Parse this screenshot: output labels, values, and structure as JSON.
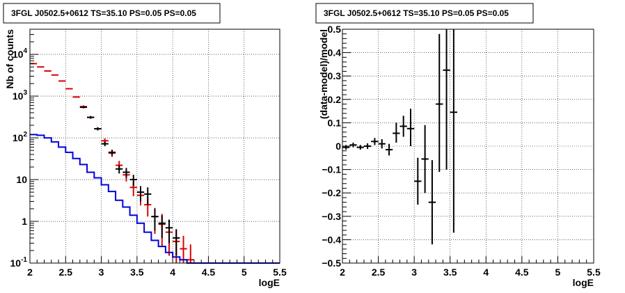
{
  "colors": {
    "data": "#000000",
    "model": "#dd0000",
    "source": "#0000dd"
  },
  "left_title": "3FGL J0502.5+0612 TS=35.10 PS=0.05 PS=0.05",
  "right_title": "3FGL J0502.5+0612 TS=35.10 PS=0.05 PS=0.05",
  "chart_data": [
    {
      "type": "scatter",
      "title": "3FGL J0502.5+0612 TS=35.10 PS=0.05 PS=0.05",
      "xlabel": "logE",
      "ylabel": "Nb of counts",
      "xlim": [
        2,
        5.5
      ],
      "ylim": [
        0.1,
        40000
      ],
      "yscale": "log",
      "grid": true,
      "x_ticks": [
        "2",
        "2.5",
        "3",
        "3.5",
        "4",
        "4.5",
        "5",
        "5.5"
      ],
      "y_ticks": [
        {
          "value": 0.1,
          "base": "10",
          "exp": "-1"
        },
        {
          "value": 1,
          "base": "1",
          "exp": ""
        },
        {
          "value": 10,
          "base": "10",
          "exp": ""
        },
        {
          "value": 100,
          "base": "10",
          "exp": "2"
        },
        {
          "value": 1000,
          "base": "10",
          "exp": "3"
        },
        {
          "value": 10000,
          "base": "10",
          "exp": "4"
        }
      ],
      "series": [
        {
          "role": "model",
          "x": [
            2.05,
            2.15,
            2.25,
            2.35,
            2.45,
            2.55,
            2.65,
            2.75,
            2.85,
            2.95,
            3.05,
            3.15,
            3.25,
            3.35,
            3.45,
            3.55,
            3.65,
            3.75,
            3.85,
            3.95,
            4.05,
            4.15,
            4.25
          ],
          "y": [
            6000,
            5000,
            4000,
            3200,
            2300,
            1500,
            950,
            560,
            310,
            165,
            85,
            43,
            22,
            13,
            6.5,
            4.2,
            2.5,
            1.3,
            0.85,
            0.55,
            0.33,
            0.22,
            0.12
          ],
          "ylow": [
            6000,
            5000,
            4000,
            3200,
            2300,
            1500,
            950,
            520,
            285,
            150,
            73,
            35,
            17,
            9,
            4,
            2.4,
            1.3,
            0.5,
            0.25,
            0.15,
            0.1,
            0.1,
            0.1
          ],
          "yhigh": [
            6000,
            5000,
            4000,
            3200,
            2300,
            1500,
            950,
            600,
            335,
            180,
            97,
            51,
            28,
            17,
            9,
            6,
            3.8,
            2.1,
            1.5,
            1,
            0.6,
            0.45,
            0.28
          ]
        },
        {
          "role": "data",
          "x": [
            2.75,
            2.85,
            2.95,
            3.05,
            3.15,
            3.25,
            3.35,
            3.45,
            3.55,
            3.65,
            3.75,
            3.85,
            3.95,
            4.05
          ],
          "y": [
            540,
            310,
            165,
            72,
            45,
            18,
            15,
            10,
            5,
            4.5,
            1.3,
            0.9,
            0.7,
            0.4
          ],
          "ylow": [
            510,
            290,
            150,
            63,
            38,
            14,
            11,
            7,
            3,
            2.5,
            0.6,
            0.4,
            0.3,
            0.15
          ],
          "yhigh": [
            570,
            330,
            180,
            81,
            52,
            22,
            19,
            13,
            7,
            6.5,
            2,
            1.4,
            1.1,
            0.65
          ]
        },
        {
          "role": "source",
          "x": [
            2.0,
            2.1,
            2.2,
            2.3,
            2.4,
            2.5,
            2.6,
            2.7,
            2.8,
            2.9,
            3.0,
            3.1,
            3.2,
            3.3,
            3.4,
            3.5,
            3.6,
            3.7,
            3.8,
            3.9,
            4.0,
            4.1,
            4.2,
            4.3,
            4.4,
            4.5,
            4.6,
            4.7,
            4.8,
            4.9,
            5.0,
            5.1,
            5.2,
            5.3,
            5.4
          ],
          "y": [
            120,
            115,
            100,
            80,
            60,
            45,
            32,
            23,
            15,
            11,
            7.5,
            5.2,
            3.2,
            2.2,
            1.4,
            0.9,
            0.55,
            0.35,
            0.25,
            0.18,
            0.14,
            0.12,
            0.1,
            0.1,
            0.1,
            0.1,
            0.1,
            0.1,
            0.1,
            0.1,
            0.1,
            0.1,
            0.1,
            0.1,
            0.1
          ]
        }
      ]
    },
    {
      "type": "scatter",
      "title": "3FGL J0502.5+0612 TS=35.10 PS=0.05 PS=0.05",
      "xlabel": "logE",
      "ylabel": "(data-model)/model",
      "xlim": [
        2,
        5.5
      ],
      "ylim": [
        -0.5,
        0.5
      ],
      "grid": true,
      "x_ticks": [
        "2",
        "2.5",
        "3",
        "3.5",
        "4",
        "4.5",
        "5",
        "5.5"
      ],
      "y_ticks": [
        "−0.5",
        "−0.4",
        "−0.3",
        "−0.2",
        "−0.1",
        "0",
        "0.1",
        "0.2",
        "0.3",
        "0.4",
        "0.5"
      ],
      "series": [
        {
          "role": "data",
          "x": [
            2.05,
            2.15,
            2.25,
            2.35,
            2.45,
            2.55,
            2.65,
            2.75,
            2.85,
            2.95,
            3.05,
            3.15,
            3.25,
            3.35,
            3.45,
            3.55
          ],
          "y": [
            -0.005,
            0.005,
            -0.005,
            0.0,
            0.02,
            0.01,
            -0.015,
            0.055,
            0.085,
            0.075,
            -0.15,
            -0.055,
            -0.24,
            0.18,
            0.325,
            0.145
          ],
          "ylow": [
            -0.015,
            -0.005,
            -0.015,
            -0.012,
            0.005,
            -0.01,
            -0.04,
            0.015,
            0.04,
            0.0,
            -0.25,
            -0.2,
            -0.42,
            -0.11,
            -0.1,
            -0.37
          ],
          "yhigh": [
            0.005,
            0.015,
            0.005,
            0.012,
            0.035,
            0.03,
            0.01,
            0.1,
            0.13,
            0.16,
            -0.05,
            0.09,
            -0.06,
            0.48,
            0.5,
            0.5
          ]
        }
      ]
    }
  ]
}
